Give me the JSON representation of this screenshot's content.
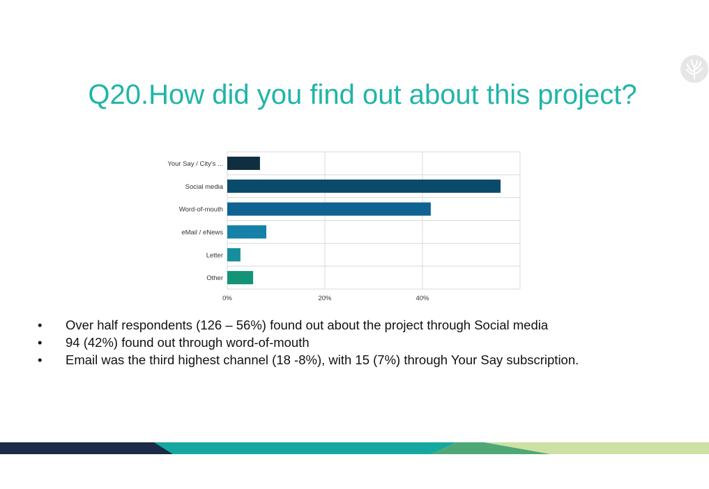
{
  "slide": {
    "title": "Q20.How did you find out about this project?",
    "bullets": [
      "Over half respondents (126 – 56%) found out about the project through Social media",
      "94 (42%) found out through word-of-mouth",
      "Email was the third highest channel (18 -8%), with 15 (7%) through Your Say subscription."
    ]
  },
  "colors": {
    "title": "#1fb5a8",
    "bars": [
      "#0f2e40",
      "#0a4a6a",
      "#0e6393",
      "#1580a8",
      "#168e9c",
      "#139477"
    ],
    "grid": "#d9d9d9",
    "stripe": [
      "#1c2b48",
      "#15a8a1",
      "#4ea876",
      "#cde1a4"
    ]
  },
  "logo_icon": "cornstalk-logo-icon",
  "chart_data": {
    "type": "bar",
    "orientation": "horizontal",
    "categories": [
      "Your Say / City's ...",
      "Social media",
      "Word-of-mouth",
      "eMail / eNews",
      "Letter",
      "Other"
    ],
    "values": [
      6.7,
      56,
      41.7,
      8,
      2.7,
      5.3
    ],
    "xlim": [
      0,
      60
    ],
    "xticks": [
      0,
      20,
      40
    ],
    "tick_labels": [
      "0%",
      "20%",
      "40%"
    ],
    "grid": true,
    "legend": "none"
  }
}
